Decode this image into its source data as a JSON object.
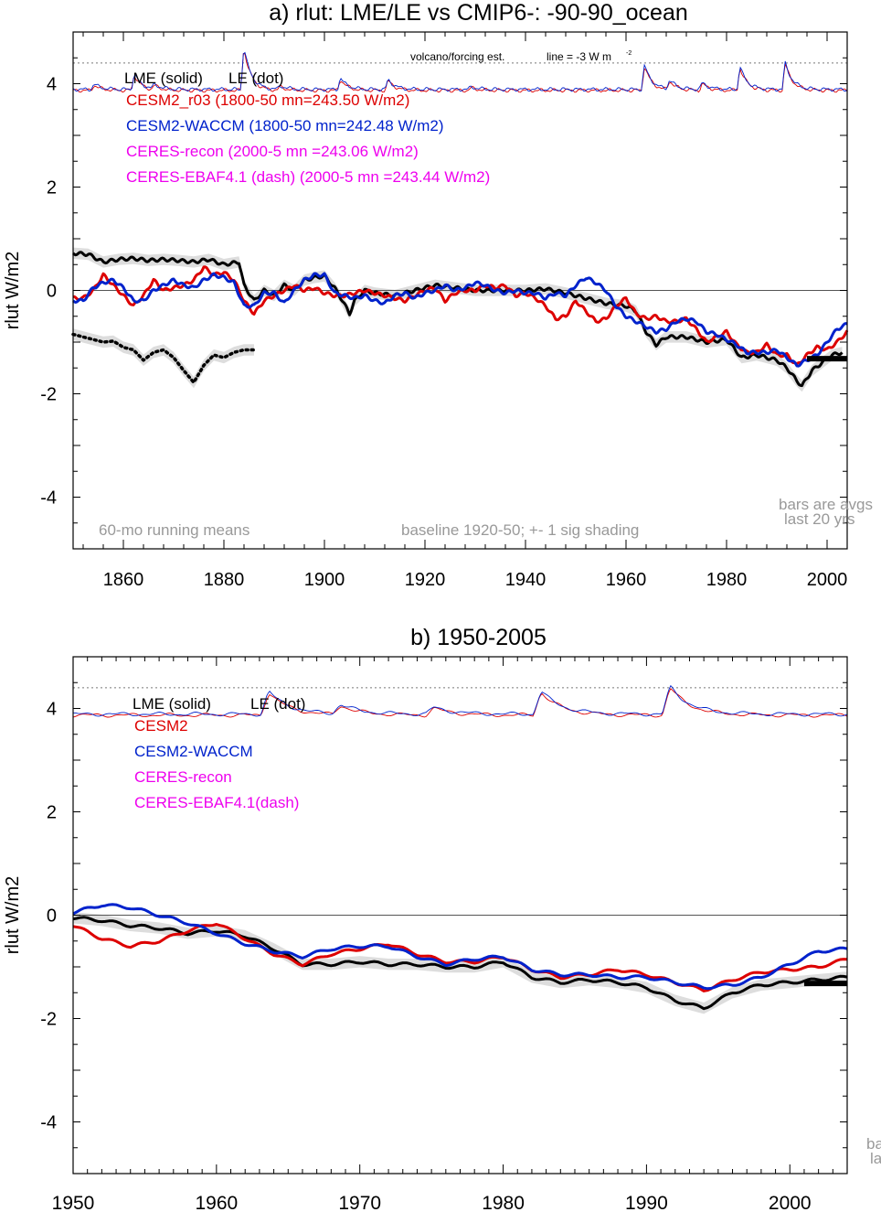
{
  "chart_data": [
    {
      "id": "a",
      "type": "line",
      "title": "a) rlut: LME/LE vs CMIP6-: -90-90_ocean",
      "ylabel": "rlut W/m2",
      "xlabel": "",
      "xlim": [
        1850,
        2004
      ],
      "ylim": [
        -5,
        5
      ],
      "xticks": [
        1860,
        1880,
        1900,
        1920,
        1940,
        1960,
        1980,
        2000
      ],
      "yticks": [
        -4,
        -2,
        0,
        2,
        4
      ],
      "grid": false,
      "zero_line": true,
      "volcano_reference_y": 4.4,
      "volcano_note": "volcano/forcing est.",
      "line_note": "line = -3 W m",
      "line_note_sup": "-2",
      "legend_header": [
        "LME (solid)",
        "LE (dot)"
      ],
      "legend": [
        {
          "label": "CESM2_r03 (1800-50 mn=243.50 W/m2)",
          "color": "#dd0000"
        },
        {
          "label": "CESM2-WACCM (1800-50 mn=242.48 W/m2)",
          "color": "#0022cc"
        },
        {
          "label": "CERES-recon (2000-5 mn =243.06 W/m2)",
          "color": "#ee00ee"
        },
        {
          "label": "CERES-EBAF4.1 (dash) (2000-5 mn =243.44 W/m2)",
          "color": "#ee00ee"
        }
      ],
      "annotations": [
        "60-mo running means",
        "baseline 1920-50; +- 1 sig shading",
        "bars are avgs",
        "last 20 yrs"
      ],
      "series": [
        {
          "name": "LME (solid)",
          "color": "#000000",
          "style": "solid",
          "shading": true,
          "x": [
            1850,
            1853,
            1856,
            1859,
            1862,
            1865,
            1868,
            1871,
            1874,
            1877,
            1880,
            1883,
            1884,
            1886,
            1888,
            1890,
            1892,
            1894,
            1896,
            1898,
            1900,
            1902,
            1903,
            1905,
            1906,
            1908,
            1910,
            1914,
            1918,
            1922,
            1926,
            1930,
            1935,
            1940,
            1944,
            1948,
            1952,
            1956,
            1960,
            1962,
            1964,
            1966,
            1968,
            1972,
            1976,
            1980,
            1983,
            1986,
            1990,
            1992,
            1994,
            1995,
            1997,
            1999,
            2001,
            2003
          ],
          "y": [
            0.72,
            0.7,
            0.55,
            0.6,
            0.62,
            0.58,
            0.6,
            0.58,
            0.55,
            0.6,
            0.5,
            0.55,
            0.1,
            -0.2,
            0.0,
            -0.1,
            0.1,
            0.0,
            0.2,
            0.25,
            0.28,
            0.05,
            -0.1,
            -0.45,
            -0.2,
            0.0,
            -0.05,
            -0.1,
            0.0,
            0.1,
            0.05,
            0.0,
            0.0,
            0.0,
            0.03,
            -0.05,
            -0.15,
            -0.25,
            -0.3,
            -0.4,
            -0.8,
            -1.05,
            -0.9,
            -0.9,
            -1.0,
            -0.95,
            -1.3,
            -1.25,
            -1.35,
            -1.5,
            -1.75,
            -1.85,
            -1.55,
            -1.4,
            -1.25,
            -1.2
          ]
        },
        {
          "name": "LE (dot)",
          "color": "#000000",
          "style": "dotted",
          "shading": true,
          "x": [
            1850,
            1852,
            1854,
            1856,
            1858,
            1860,
            1862,
            1864,
            1866,
            1868,
            1870,
            1872,
            1874,
            1876,
            1878,
            1880,
            1882,
            1884,
            1886
          ],
          "y": [
            -0.85,
            -0.9,
            -0.95,
            -1.0,
            -0.98,
            -1.1,
            -1.15,
            -1.35,
            -1.2,
            -1.15,
            -1.3,
            -1.55,
            -1.78,
            -1.45,
            -1.25,
            -1.3,
            -1.2,
            -1.15,
            -1.15
          ]
        },
        {
          "name": "CESM2_r03",
          "color": "#dd0000",
          "style": "solid",
          "x": [
            1850,
            1852,
            1854,
            1856,
            1858,
            1860,
            1862,
            1864,
            1866,
            1868,
            1870,
            1872,
            1874,
            1876,
            1878,
            1880,
            1882,
            1884,
            1886,
            1888,
            1890,
            1892,
            1894,
            1896,
            1898,
            1900,
            1902,
            1904,
            1906,
            1908,
            1910,
            1912,
            1914,
            1916,
            1918,
            1920,
            1922,
            1924,
            1926,
            1928,
            1930,
            1932,
            1934,
            1936,
            1938,
            1940,
            1942,
            1944,
            1946,
            1948,
            1950,
            1952,
            1954,
            1956,
            1958,
            1960,
            1962,
            1964,
            1966,
            1968,
            1970,
            1972,
            1974,
            1976,
            1978,
            1980,
            1982,
            1984,
            1986,
            1988,
            1990,
            1992,
            1994,
            1996,
            1998,
            2000,
            2002,
            2004
          ],
          "y": [
            -0.15,
            -0.15,
            0.0,
            0.3,
            0.1,
            -0.1,
            -0.3,
            -0.1,
            0.2,
            0.0,
            0.05,
            0.1,
            0.2,
            0.45,
            0.3,
            0.35,
            0.2,
            -0.2,
            -0.45,
            -0.2,
            -0.1,
            0.0,
            0.1,
            0.0,
            0.05,
            -0.05,
            -0.1,
            -0.1,
            -0.05,
            0.0,
            -0.05,
            -0.1,
            -0.15,
            -0.2,
            -0.1,
            0.0,
            0.05,
            -0.2,
            -0.05,
            0.0,
            0.0,
            0.1,
            0.05,
            0.1,
            -0.1,
            -0.05,
            -0.15,
            -0.3,
            -0.55,
            -0.5,
            -0.2,
            -0.4,
            -0.6,
            -0.55,
            -0.3,
            -0.15,
            -0.45,
            -0.55,
            -0.5,
            -0.6,
            -0.6,
            -0.55,
            -0.75,
            -1.0,
            -0.9,
            -0.8,
            -1.05,
            -1.2,
            -1.2,
            -1.05,
            -1.25,
            -1.25,
            -1.45,
            -1.25,
            -1.1,
            -1.15,
            -1.0,
            -0.8
          ]
        },
        {
          "name": "CESM2-WACCM",
          "color": "#0022cc",
          "style": "solid",
          "x": [
            1850,
            1852,
            1854,
            1856,
            1858,
            1860,
            1862,
            1864,
            1866,
            1868,
            1870,
            1872,
            1874,
            1876,
            1878,
            1880,
            1882,
            1884,
            1886,
            1888,
            1890,
            1892,
            1894,
            1896,
            1898,
            1900,
            1902,
            1904,
            1906,
            1908,
            1910,
            1912,
            1914,
            1916,
            1918,
            1920,
            1922,
            1924,
            1926,
            1928,
            1930,
            1932,
            1934,
            1936,
            1938,
            1940,
            1942,
            1944,
            1946,
            1948,
            1950,
            1952,
            1954,
            1956,
            1958,
            1960,
            1962,
            1964,
            1966,
            1968,
            1970,
            1972,
            1974,
            1976,
            1978,
            1980,
            1982,
            1984,
            1986,
            1988,
            1990,
            1992,
            1994,
            1996,
            1998,
            2000,
            2002,
            2004
          ],
          "y": [
            -0.2,
            -0.2,
            0.05,
            0.15,
            0.2,
            0.05,
            -0.2,
            -0.2,
            0.0,
            0.1,
            0.2,
            0.1,
            0.05,
            0.2,
            0.3,
            0.25,
            0.15,
            -0.3,
            -0.3,
            -0.05,
            -0.05,
            -0.25,
            0.0,
            0.2,
            0.3,
            0.3,
            -0.05,
            -0.1,
            -0.15,
            -0.1,
            -0.2,
            -0.25,
            -0.1,
            -0.05,
            -0.15,
            -0.05,
            0.0,
            0.1,
            0.0,
            0.05,
            0.15,
            0.1,
            0.0,
            -0.05,
            0.0,
            -0.05,
            -0.05,
            -0.15,
            -0.05,
            -0.1,
            0.1,
            0.25,
            0.15,
            0.0,
            -0.3,
            -0.5,
            -0.6,
            -0.7,
            -0.8,
            -0.75,
            -0.6,
            -0.55,
            -0.6,
            -0.8,
            -0.85,
            -0.95,
            -1.05,
            -1.2,
            -1.2,
            -1.2,
            -1.15,
            -1.3,
            -1.45,
            -1.35,
            -1.25,
            -1.0,
            -0.75,
            -0.65
          ]
        }
      ],
      "bars": [
        {
          "x0": 1996,
          "x1": 2004,
          "y": -1.32,
          "color": "#000000"
        }
      ]
    },
    {
      "id": "b",
      "type": "line",
      "title": "b) 1950-2005",
      "ylabel": "rlut W/m2",
      "xlabel": "",
      "xlim": [
        1950,
        2004
      ],
      "ylim": [
        -5,
        5
      ],
      "xticks": [
        1950,
        1960,
        1970,
        1980,
        1990,
        2000
      ],
      "yticks": [
        -4,
        -2,
        0,
        2,
        4
      ],
      "grid": false,
      "zero_line": true,
      "volcano_reference_y": 4.4,
      "legend_header": [
        "LME (solid)",
        "LE (dot)"
      ],
      "legend": [
        {
          "label": "CESM2",
          "color": "#dd0000"
        },
        {
          "label": "CESM2-WACCM",
          "color": "#0022cc"
        },
        {
          "label": "CERES-recon",
          "color": "#ee00ee"
        },
        {
          "label": "CERES-EBAF4.1(dash)",
          "color": "#ee00ee"
        }
      ],
      "annotations": [
        "ba",
        "la"
      ],
      "series": [
        {
          "name": "LME (solid)",
          "color": "#000000",
          "style": "solid",
          "shading": true,
          "x": [
            1950,
            1952,
            1954,
            1956,
            1958,
            1960,
            1962,
            1964,
            1966,
            1968,
            1970,
            1972,
            1974,
            1976,
            1978,
            1980,
            1982,
            1984,
            1986,
            1988,
            1990,
            1992,
            1994,
            1996,
            1998,
            2000,
            2002,
            2004
          ],
          "y": [
            -0.05,
            -0.1,
            -0.2,
            -0.25,
            -0.35,
            -0.3,
            -0.4,
            -0.65,
            -0.95,
            -0.95,
            -0.9,
            -0.95,
            -0.95,
            -1.0,
            -1.0,
            -0.9,
            -1.2,
            -1.3,
            -1.25,
            -1.3,
            -1.4,
            -1.65,
            -1.8,
            -1.5,
            -1.35,
            -1.3,
            -1.25,
            -1.2
          ]
        },
        {
          "name": "CESM2",
          "color": "#dd0000",
          "style": "solid",
          "x": [
            1950,
            1952,
            1954,
            1956,
            1958,
            1960,
            1962,
            1964,
            1966,
            1968,
            1970,
            1972,
            1974,
            1976,
            1978,
            1980,
            1982,
            1984,
            1986,
            1988,
            1990,
            1992,
            1994,
            1996,
            1998,
            2000,
            2002,
            2004
          ],
          "y": [
            -0.2,
            -0.45,
            -0.6,
            -0.5,
            -0.3,
            -0.15,
            -0.45,
            -0.75,
            -0.95,
            -0.75,
            -0.65,
            -0.55,
            -0.75,
            -0.9,
            -0.9,
            -0.8,
            -1.05,
            -1.2,
            -1.15,
            -1.05,
            -1.15,
            -1.3,
            -1.45,
            -1.25,
            -1.1,
            -1.05,
            -1.0,
            -0.85
          ]
        },
        {
          "name": "CESM2-WACCM",
          "color": "#0022cc",
          "style": "solid",
          "x": [
            1950,
            1952,
            1954,
            1956,
            1958,
            1960,
            1962,
            1964,
            1966,
            1968,
            1970,
            1972,
            1974,
            1976,
            1978,
            1980,
            1982,
            1984,
            1986,
            1988,
            1990,
            1992,
            1994,
            1996,
            1998,
            2000,
            2002,
            2004
          ],
          "y": [
            0.05,
            0.2,
            0.15,
            0.0,
            -0.15,
            -0.35,
            -0.55,
            -0.7,
            -0.8,
            -0.65,
            -0.6,
            -0.6,
            -0.8,
            -0.95,
            -0.85,
            -0.8,
            -1.05,
            -1.15,
            -1.15,
            -1.2,
            -1.2,
            -1.3,
            -1.4,
            -1.35,
            -1.2,
            -0.95,
            -0.7,
            -0.65
          ]
        }
      ],
      "bars": [
        {
          "x0": 2001,
          "x1": 2004,
          "y": -1.32,
          "color": "#000000"
        }
      ]
    }
  ]
}
